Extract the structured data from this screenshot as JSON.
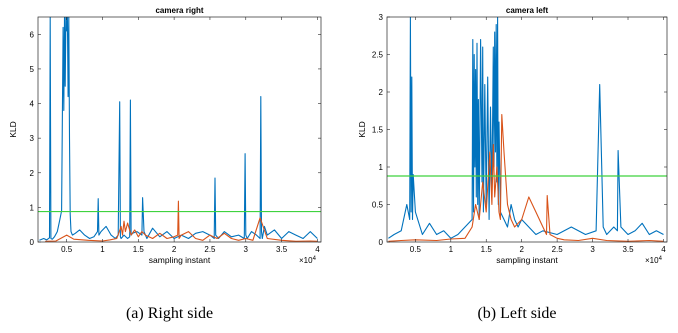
{
  "chart_data": [
    {
      "type": "line",
      "title": "camera right",
      "xlabel": "sampling instant",
      "ylabel": "KLD",
      "x_exponent": "×10",
      "x_exponent_power": "4",
      "xlim": [
        0.1,
        4.05
      ],
      "ylim": [
        0,
        6.5
      ],
      "xticks": [
        0.5,
        1,
        1.5,
        2,
        2.5,
        3,
        3.5,
        4
      ],
      "xtick_labels": [
        "0.5",
        "1",
        "1.5",
        "2",
        "2.5",
        "3",
        "3.5",
        "4"
      ],
      "yticks": [
        0,
        1,
        2,
        3,
        4,
        5,
        6
      ],
      "ytick_labels": [
        "0",
        "1",
        "2",
        "3",
        "4",
        "5",
        "6"
      ],
      "threshold": {
        "y": 0.88,
        "color": "#3fd23f"
      },
      "caption": "(a) Right side",
      "series": [
        {
          "color": "#0072bd",
          "x": [
            0.12,
            0.18,
            0.22,
            0.26,
            0.27,
            0.28,
            0.3,
            0.33,
            0.37,
            0.4,
            0.43,
            0.45,
            0.46,
            0.47,
            0.48,
            0.49,
            0.5,
            0.51,
            0.52,
            0.53,
            0.54,
            0.55,
            0.56,
            0.58,
            0.62,
            0.68,
            0.75,
            0.82,
            0.88,
            0.93,
            0.94,
            0.95,
            0.98,
            1.05,
            1.12,
            1.18,
            1.22,
            1.24,
            1.25,
            1.26,
            1.3,
            1.35,
            1.38,
            1.39,
            1.4,
            1.42,
            1.48,
            1.55,
            1.56,
            1.58,
            1.62,
            1.7,
            1.8,
            1.9,
            2.0,
            2.1,
            2.2,
            2.3,
            2.4,
            2.5,
            2.56,
            2.57,
            2.58,
            2.62,
            2.7,
            2.8,
            2.9,
            2.98,
            2.99,
            3.0,
            3.02,
            3.08,
            3.15,
            3.2,
            3.21,
            3.22,
            3.23,
            3.26,
            3.3,
            3.4,
            3.5,
            3.6,
            3.7,
            3.8,
            3.9,
            4.0
          ],
          "y": [
            0.05,
            0.1,
            0.06,
            0.12,
            6.5,
            0.1,
            0.08,
            0.15,
            0.3,
            0.6,
            0.9,
            6.2,
            3.8,
            6.5,
            4.5,
            6.5,
            6.1,
            6.5,
            4.2,
            6.5,
            3.0,
            0.8,
            0.3,
            0.2,
            0.25,
            0.35,
            0.2,
            0.1,
            0.15,
            0.3,
            1.25,
            0.2,
            0.3,
            0.45,
            0.2,
            0.1,
            0.2,
            4.05,
            0.15,
            0.1,
            0.2,
            0.1,
            0.15,
            4.1,
            0.2,
            0.25,
            0.3,
            0.2,
            1.28,
            0.3,
            0.1,
            0.4,
            0.15,
            0.3,
            0.1,
            0.2,
            0.1,
            0.25,
            0.3,
            0.2,
            0.1,
            1.85,
            0.2,
            0.1,
            0.3,
            0.15,
            0.2,
            0.1,
            2.55,
            0.2,
            0.1,
            0.3,
            0.2,
            0.1,
            4.2,
            0.3,
            0.1,
            0.45,
            0.2,
            0.35,
            0.1,
            0.3,
            0.2,
            0.1,
            0.3,
            0.1
          ]
        },
        {
          "color": "#d95319",
          "x": [
            0.2,
            0.35,
            0.5,
            0.6,
            0.8,
            1.0,
            1.1,
            1.2,
            1.26,
            1.28,
            1.3,
            1.32,
            1.35,
            1.4,
            1.45,
            1.5,
            1.55,
            1.6,
            1.7,
            1.8,
            1.9,
            2.0,
            2.05,
            2.06,
            2.07,
            2.1,
            2.2,
            2.3,
            2.4,
            2.5,
            2.6,
            2.7,
            2.8,
            2.9,
            3.0,
            3.1,
            3.2,
            3.3,
            3.5,
            3.7,
            3.9,
            4.0
          ],
          "y": [
            0.02,
            0.03,
            0.2,
            0.08,
            0.05,
            0.03,
            0.06,
            0.1,
            0.45,
            0.2,
            0.6,
            0.3,
            0.55,
            0.2,
            0.35,
            0.15,
            0.3,
            0.2,
            0.1,
            0.25,
            0.1,
            0.15,
            0.2,
            1.18,
            0.1,
            0.2,
            0.3,
            0.1,
            0.05,
            0.2,
            0.1,
            0.25,
            0.1,
            0.05,
            0.1,
            0.05,
            0.7,
            0.1,
            0.05,
            0.02,
            0.03,
            0.02
          ]
        }
      ]
    },
    {
      "type": "line",
      "title": "camera left",
      "xlabel": "sampling instant",
      "ylabel": "KLD",
      "x_exponent": "×10",
      "x_exponent_power": "4",
      "xlim": [
        0.1,
        4.05
      ],
      "ylim": [
        0,
        3
      ],
      "xticks": [
        0.5,
        1,
        1.5,
        2,
        2.5,
        3,
        3.5,
        4
      ],
      "xtick_labels": [
        "0.5",
        "1",
        "1.5",
        "2",
        "2.5",
        "3",
        "3.5",
        "4"
      ],
      "yticks": [
        0,
        0.5,
        1,
        1.5,
        2,
        2.5,
        3
      ],
      "ytick_labels": [
        "0",
        "0.5",
        "1",
        "1.5",
        "2",
        "2.5",
        "3"
      ],
      "threshold": {
        "y": 0.88,
        "color": "#3fd23f"
      },
      "caption": "(b) Left side",
      "series": [
        {
          "color": "#0072bd",
          "x": [
            0.12,
            0.2,
            0.3,
            0.38,
            0.42,
            0.43,
            0.44,
            0.45,
            0.46,
            0.47,
            0.5,
            0.6,
            0.7,
            0.8,
            0.9,
            1.0,
            1.1,
            1.2,
            1.3,
            1.31,
            1.32,
            1.33,
            1.34,
            1.35,
            1.36,
            1.37,
            1.38,
            1.39,
            1.4,
            1.42,
            1.44,
            1.45,
            1.46,
            1.48,
            1.5,
            1.52,
            1.54,
            1.56,
            1.58,
            1.6,
            1.61,
            1.62,
            1.63,
            1.64,
            1.65,
            1.66,
            1.67,
            1.68,
            1.7,
            1.75,
            1.8,
            1.85,
            1.9,
            1.95,
            2.0,
            2.1,
            2.2,
            2.3,
            2.5,
            2.7,
            2.9,
            3.05,
            3.1,
            3.15,
            3.2,
            3.3,
            3.35,
            3.36,
            3.4,
            3.5,
            3.6,
            3.7,
            3.8,
            3.9,
            4.0
          ],
          "y": [
            0.05,
            0.1,
            0.15,
            0.5,
            0.3,
            3.0,
            0.4,
            2.2,
            0.3,
            0.9,
            0.4,
            0.1,
            0.25,
            0.1,
            0.15,
            0.05,
            0.1,
            0.2,
            0.3,
            2.7,
            0.4,
            2.5,
            1.0,
            2.3,
            0.6,
            2.65,
            0.5,
            1.9,
            0.3,
            2.7,
            0.8,
            2.6,
            0.4,
            2.1,
            0.5,
            2.2,
            0.3,
            1.8,
            0.6,
            2.6,
            1.0,
            2.8,
            1.2,
            2.9,
            0.8,
            3.0,
            0.5,
            1.6,
            0.4,
            0.3,
            0.2,
            0.5,
            0.3,
            0.2,
            0.3,
            0.2,
            0.1,
            0.15,
            0.1,
            0.2,
            0.1,
            0.15,
            2.1,
            0.2,
            0.1,
            0.2,
            0.15,
            1.22,
            0.2,
            0.1,
            0.15,
            0.25,
            0.1,
            0.15,
            0.1
          ]
        },
        {
          "color": "#d95319",
          "x": [
            0.12,
            0.3,
            0.5,
            0.8,
            1.0,
            1.2,
            1.3,
            1.35,
            1.4,
            1.45,
            1.5,
            1.55,
            1.58,
            1.6,
            1.62,
            1.65,
            1.68,
            1.7,
            1.72,
            1.75,
            1.8,
            1.85,
            1.9,
            2.0,
            2.1,
            2.2,
            2.3,
            2.35,
            2.36,
            2.4,
            2.5,
            2.6,
            2.8,
            3.0,
            3.2,
            3.5,
            3.8,
            4.0
          ],
          "y": [
            0.01,
            0.02,
            0.03,
            0.02,
            0.04,
            0.05,
            0.2,
            0.5,
            0.3,
            0.8,
            0.4,
            1.2,
            0.5,
            1.3,
            0.6,
            1.0,
            0.4,
            0.3,
            1.7,
            1.2,
            0.5,
            0.3,
            0.2,
            0.3,
            0.6,
            0.4,
            0.2,
            0.1,
            0.62,
            0.1,
            0.05,
            0.03,
            0.02,
            0.05,
            0.02,
            0.01,
            0.02,
            0.01
          ]
        }
      ]
    }
  ]
}
